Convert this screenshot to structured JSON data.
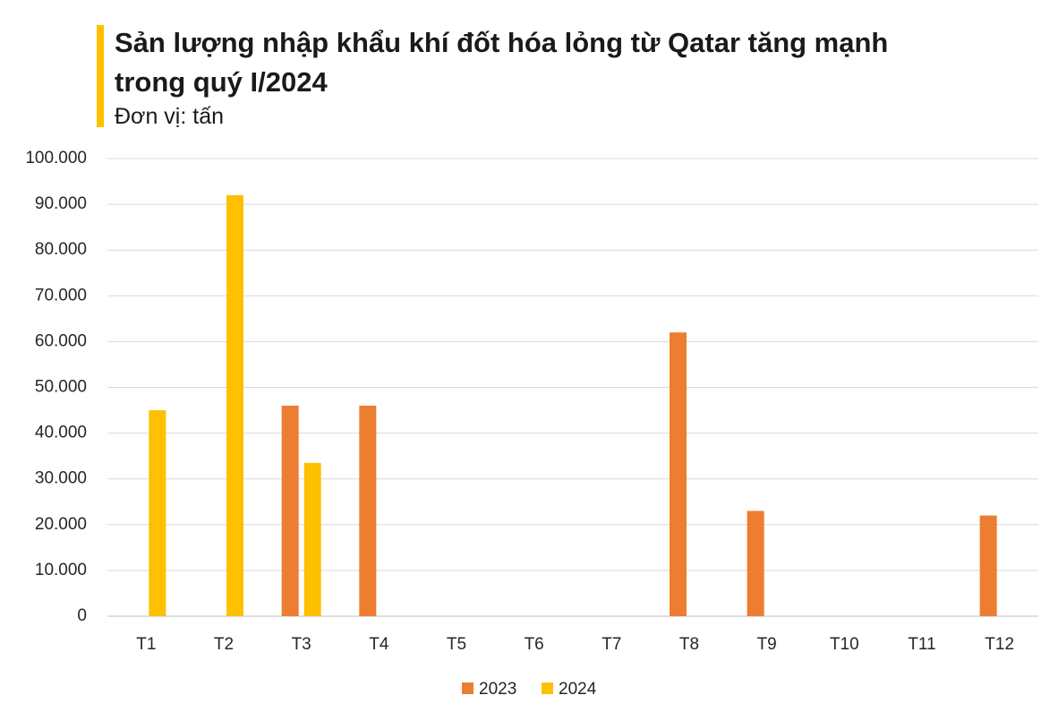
{
  "chart_data": {
    "type": "bar",
    "title": "Sản lượng nhập khẩu khí đốt hóa lỏng từ Qatar tăng mạnh trong quý I/2024",
    "subtitle": "Đơn vị: tấn",
    "categories": [
      "T1",
      "T2",
      "T3",
      "T4",
      "T5",
      "T6",
      "T7",
      "T8",
      "T9",
      "T10",
      "T11",
      "T12"
    ],
    "series": [
      {
        "name": "2023",
        "color": "#ed7d31",
        "values": [
          null,
          null,
          46000,
          46000,
          null,
          null,
          null,
          62000,
          23000,
          null,
          null,
          22000
        ]
      },
      {
        "name": "2024",
        "color": "#ffc000",
        "values": [
          45000,
          92000,
          33500,
          null,
          null,
          null,
          null,
          null,
          null,
          null,
          null,
          null
        ]
      }
    ],
    "ylim": [
      0,
      100000
    ],
    "yticks": [
      0,
      {
        "value": 10000,
        "label": "10.000"
      },
      {
        "value": 20000,
        "label": "20.000"
      },
      {
        "value": 30000,
        "label": "30.000"
      },
      {
        "value": 40000,
        "label": "40.000"
      },
      {
        "value": 50000,
        "label": "50.000"
      },
      {
        "value": 60000,
        "label": "60.000"
      },
      {
        "value": 70000,
        "label": "70.000"
      },
      {
        "value": 80000,
        "label": "80.000"
      },
      {
        "value": 90000,
        "label": "90.000"
      },
      {
        "value": 100000,
        "label": "100.000"
      }
    ],
    "grid": true,
    "legend": "bottom"
  }
}
